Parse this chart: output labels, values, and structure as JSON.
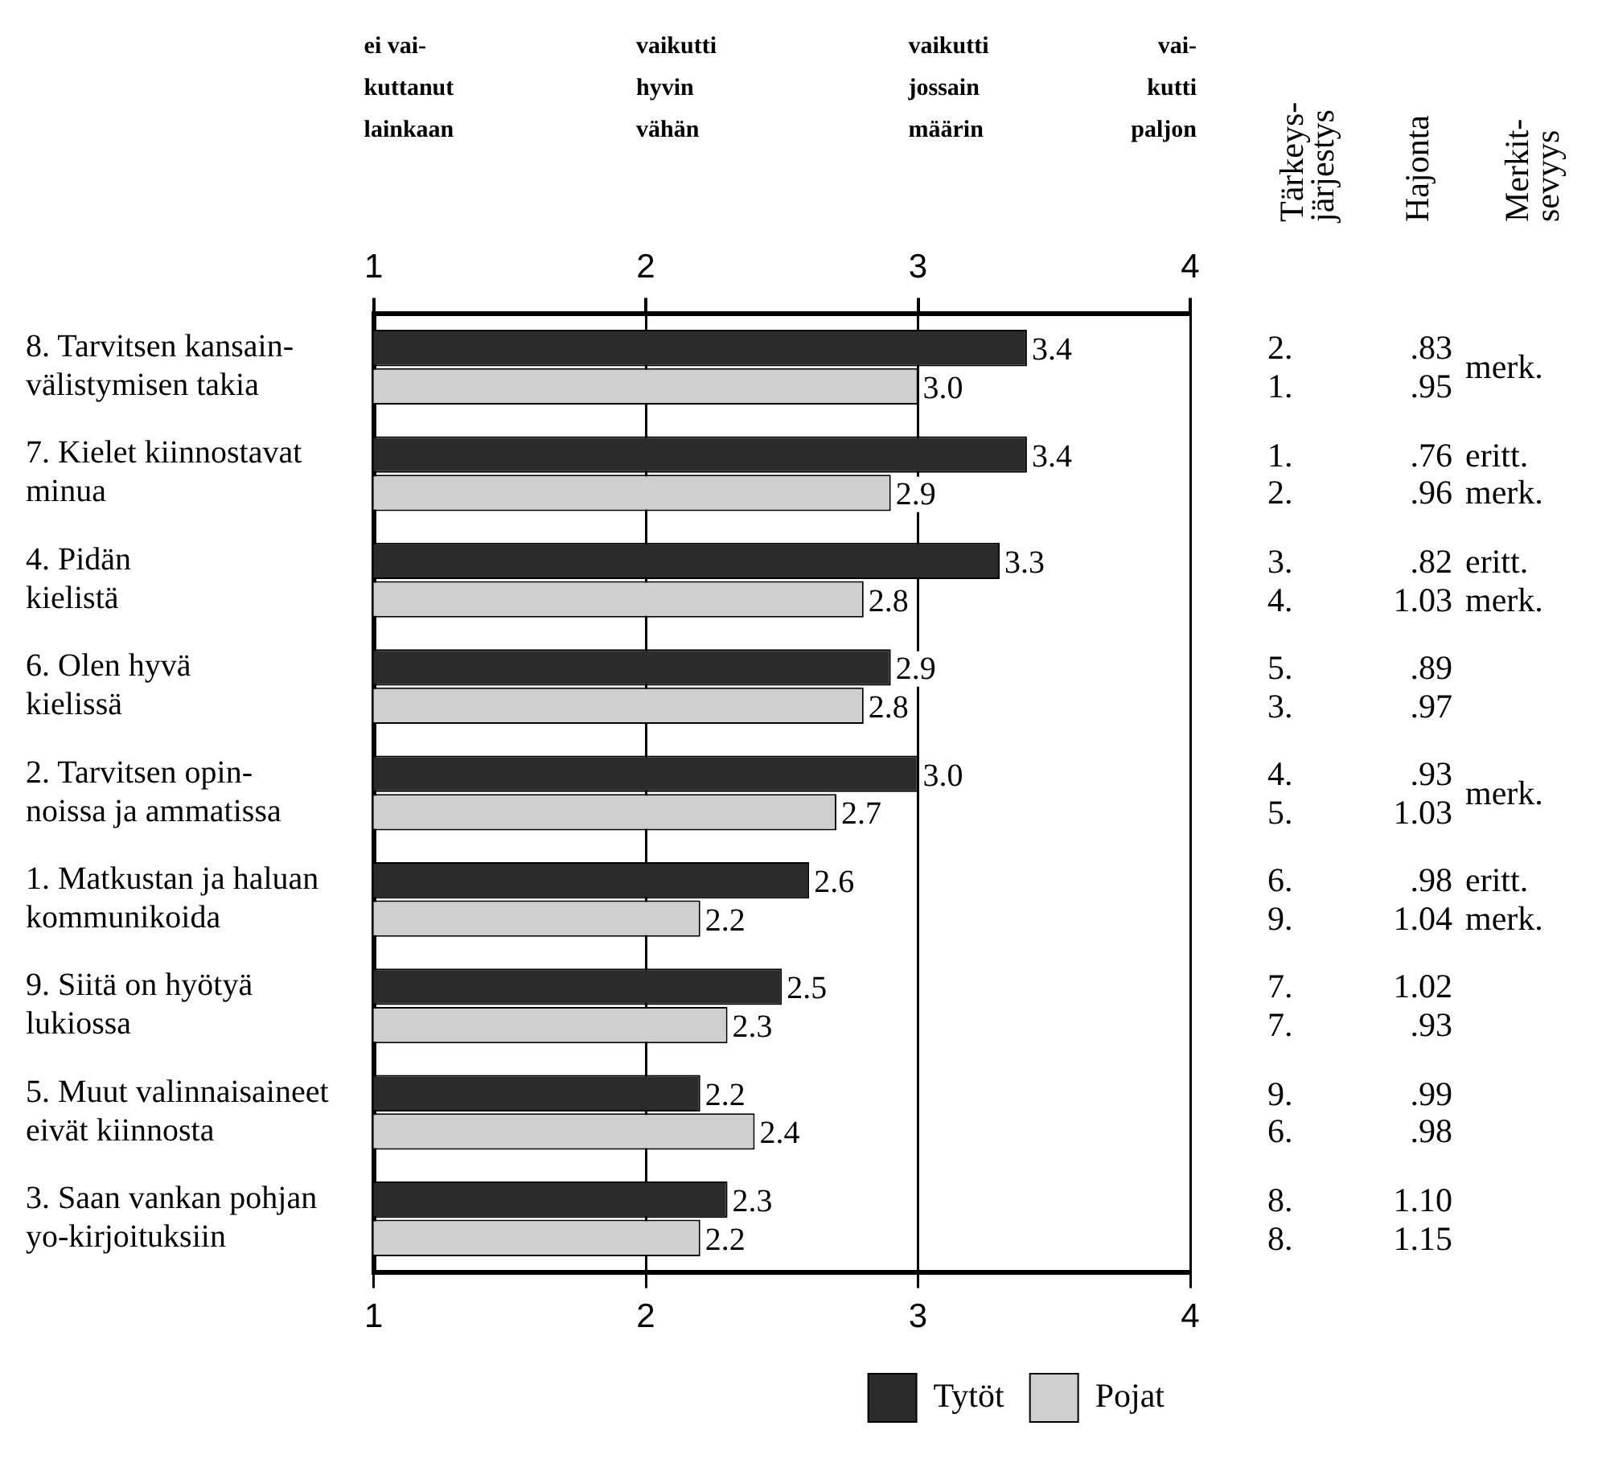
{
  "chart_data": {
    "type": "bar",
    "orientation": "horizontal",
    "categories": [
      "8. Tarvitsen kansain-\nvälistymisen takia",
      "7. Kielet kiinnostavat\nminua",
      "4. Pidän\nkielistä",
      "6. Olen hyvä\nkielissä",
      "2. Tarvitsen opin-\nnoissa ja ammatissa",
      "1. Matkustan ja haluan\nkommunikoida",
      "9. Siitä on hyötyä\nlukiossa",
      "5. Muut valinnaisaineet\neivät kiinnosta",
      "3. Saan vankan pohjan\nyo-kirjoituksiin"
    ],
    "series": [
      {
        "name": "Tytöt",
        "color": "#2b2b2b",
        "values": [
          3.4,
          3.4,
          3.3,
          2.9,
          3.0,
          2.6,
          2.5,
          2.2,
          2.3
        ],
        "value_labels": [
          "3.4",
          "3.4",
          "3.3",
          "2.9",
          "3.0",
          "2.6",
          "2.5",
          "2.2",
          "2.3"
        ]
      },
      {
        "name": "Pojat",
        "color": "#cfcfcf",
        "values": [
          3.0,
          2.9,
          2.8,
          2.8,
          2.7,
          2.2,
          2.3,
          2.4,
          2.2
        ],
        "value_labels": [
          "3.0",
          "2.9",
          "2.8",
          "2.8",
          "2.7",
          "2.2",
          "2.3",
          "2.4",
          "2.2"
        ]
      }
    ],
    "xlim": [
      1,
      4
    ],
    "xticks": [
      1,
      2,
      3,
      4
    ],
    "x2lim": [
      1,
      4
    ],
    "x2ticks": [
      1,
      2,
      3,
      4
    ],
    "grid": "x",
    "legend": "bottom right",
    "annotations": [
      "ei vai-\nkuttanut\nlainkaan",
      "vaikutti\nhyvin\nvähän",
      "vaikutti\njossain\nmäärin",
      "vai-\nkutti\npaljon",
      "Tärkeys-\njärjestys",
      "Hajonta",
      "Merkit-\nsevyys",
      "2.",
      ".83",
      "merk.",
      "1.",
      ".95",
      null,
      "1.",
      ".76",
      "eritt.",
      "2.",
      ".96",
      "merk.",
      "3.",
      ".82",
      "eritt.",
      "4.",
      "1.03",
      "merk.",
      "5.",
      ".89",
      null,
      "3.",
      ".97",
      null,
      "4.",
      ".93",
      "merk.",
      "5.",
      "1.03",
      null,
      "6.",
      ".98",
      "eritt.",
      "9.",
      "1.04",
      "merk.",
      "7.",
      "1.02",
      null,
      "7.",
      ".93",
      null,
      "9.",
      ".99",
      null,
      "6.",
      ".98",
      null,
      "8.",
      "1.10",
      null,
      "8.",
      "1.15",
      null
    ]
  }
}
